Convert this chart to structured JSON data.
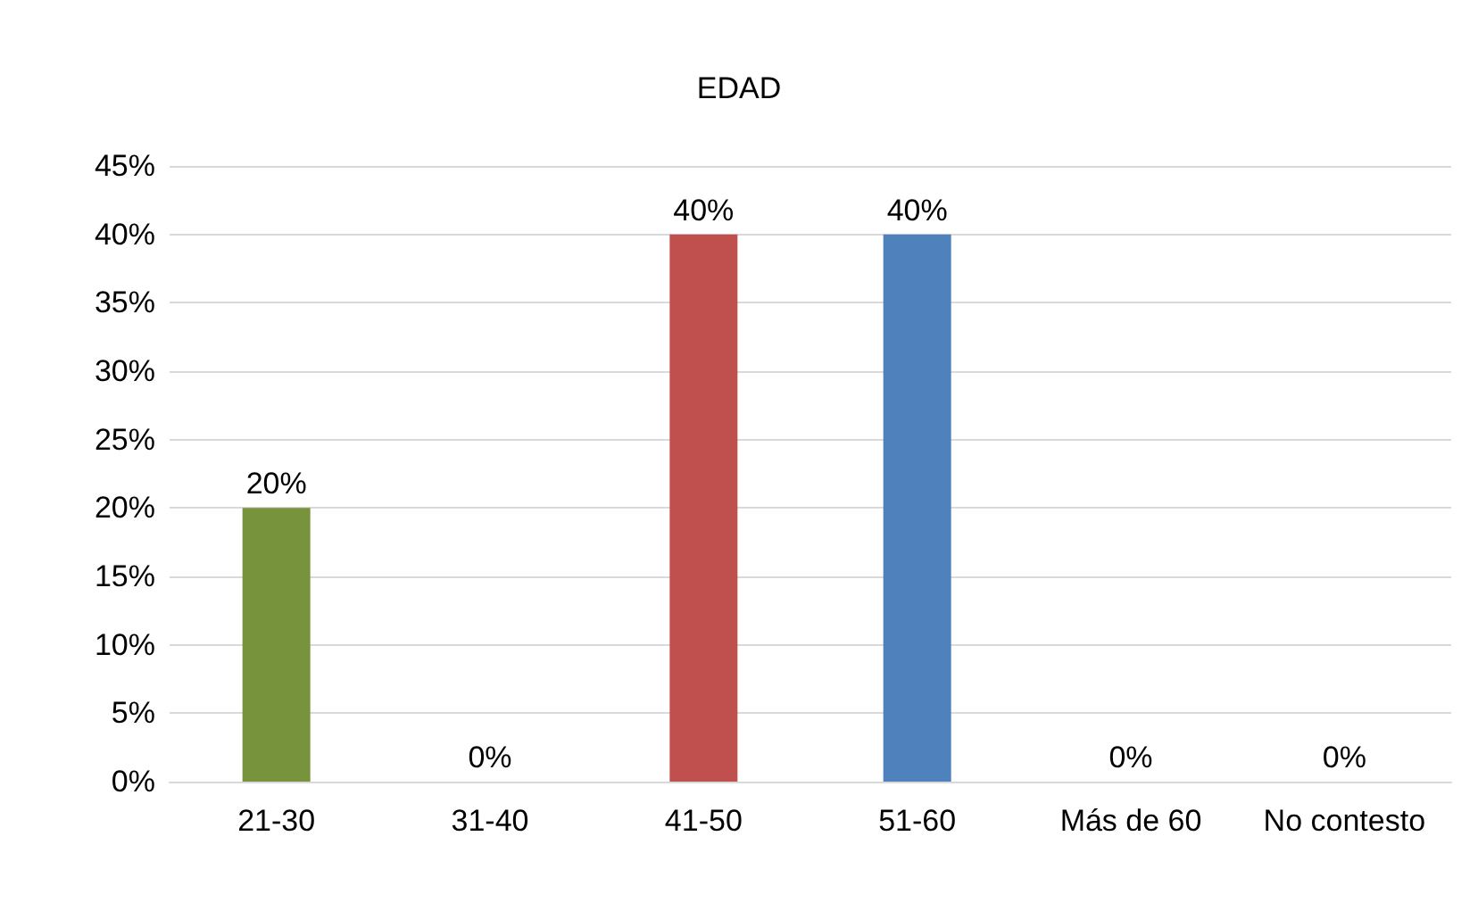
{
  "chart_data": {
    "type": "bar",
    "title": "EDAD",
    "categories": [
      "21-30",
      "31-40",
      "41-50",
      "51-60",
      "Más de 60",
      "No contesto"
    ],
    "values": [
      20,
      0,
      40,
      40,
      0,
      0
    ],
    "colors": [
      "#77933c",
      "#4f81bd",
      "#c0504d",
      "#4f81bd",
      "#4f81bd",
      "#4f81bd"
    ],
    "value_labels": [
      "20%",
      "0%",
      "40%",
      "40%",
      "0%",
      "0%"
    ],
    "ylim": [
      0,
      45
    ],
    "yticks": [
      {
        "value": 0,
        "label": "0%"
      },
      {
        "value": 5,
        "label": "5%"
      },
      {
        "value": 10,
        "label": "10%"
      },
      {
        "value": 15,
        "label": "15%"
      },
      {
        "value": 20,
        "label": "20%"
      },
      {
        "value": 25,
        "label": "25%"
      },
      {
        "value": 30,
        "label": "30%"
      },
      {
        "value": 35,
        "label": "35%"
      },
      {
        "value": 40,
        "label": "40%"
      },
      {
        "value": 45,
        "label": "45%"
      }
    ],
    "grid": "y"
  }
}
